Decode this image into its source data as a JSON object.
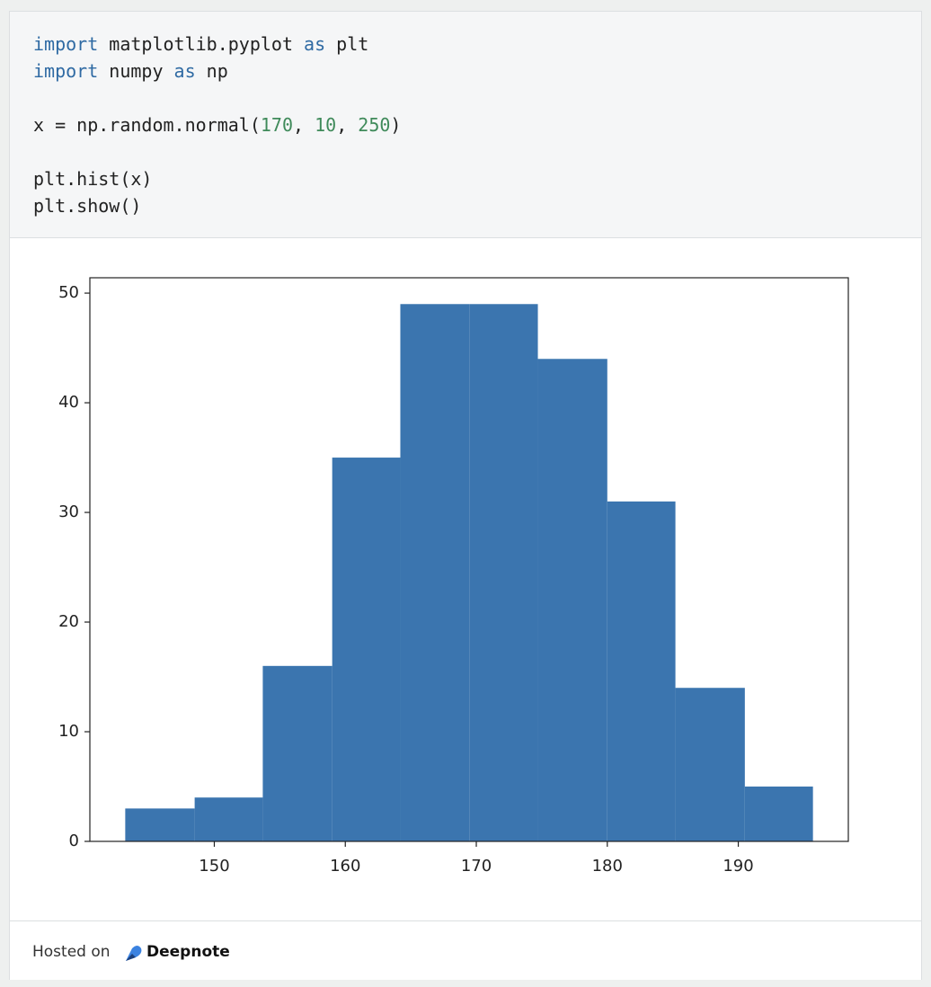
{
  "code": {
    "lines": [
      [
        {
          "text": "import",
          "color": "#2f6aa3"
        },
        {
          "text": " matplotlib.pyplot "
        },
        {
          "text": "as",
          "color": "#2f6aa3"
        },
        {
          "text": " plt"
        }
      ],
      [
        {
          "text": "import",
          "color": "#2f6aa3"
        },
        {
          "text": " numpy "
        },
        {
          "text": "as",
          "color": "#2f6aa3"
        },
        {
          "text": " np"
        }
      ],
      [],
      [
        {
          "text": "x = np.random.normal("
        },
        {
          "text": "170",
          "color": "#3f8a5a"
        },
        {
          "text": ", "
        },
        {
          "text": "10",
          "color": "#3f8a5a"
        },
        {
          "text": ", "
        },
        {
          "text": "250",
          "color": "#3f8a5a"
        },
        {
          "text": ")"
        }
      ],
      [],
      [
        {
          "text": "plt.hist(x)"
        }
      ],
      [
        {
          "text": "plt.show()"
        }
      ]
    ]
  },
  "chart_data": {
    "type": "histogram",
    "color": "#3b75af",
    "bins": [
      143.2,
      148.5,
      153.7,
      159.0,
      164.2,
      169.5,
      174.7,
      180.0,
      185.2,
      190.5,
      195.7
    ],
    "values": [
      3,
      4,
      16,
      35,
      49,
      49,
      44,
      31,
      14,
      5
    ],
    "xlim": [
      140.5,
      198.4
    ],
    "xticks": [
      150,
      160,
      170,
      180,
      190
    ],
    "ylim": [
      0,
      51.4
    ],
    "yticks": [
      0,
      10,
      20,
      30,
      40,
      50
    ]
  },
  "footer": {
    "prefix": "Hosted on",
    "brand": "Deepnote"
  }
}
